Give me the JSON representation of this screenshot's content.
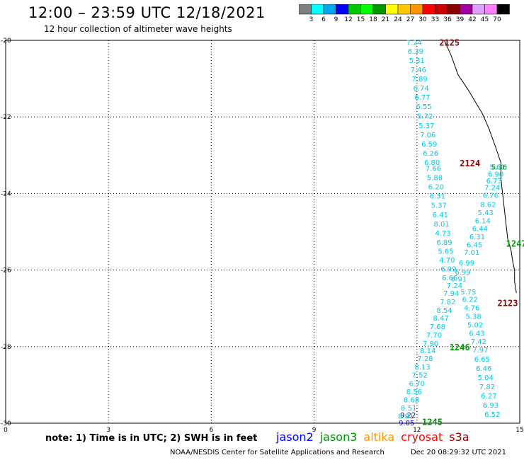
{
  "header": {
    "title": "12:00 – 23:59 UTC 12/18/2021",
    "subtitle": "12 hour collection of altimeter wave heights"
  },
  "colorbar": {
    "colors": [
      "#808080",
      "#00ffff",
      "#00a8f0",
      "#0000ff",
      "#00c800",
      "#00ff00",
      "#009600",
      "#ffff00",
      "#ffc800",
      "#ff9600",
      "#ff0000",
      "#c80000",
      "#8c0000",
      "#a000a0",
      "#e0a0ff",
      "#ff80ff",
      "#000000"
    ],
    "labels": [
      "3",
      "6",
      "9",
      "12",
      "15",
      "18",
      "21",
      "24",
      "27",
      "30",
      "33",
      "36",
      "39",
      "42",
      "45",
      "70"
    ],
    "unit": "(ft)"
  },
  "note": "note:  1) Time is in UTC;  2) SWH is in feet",
  "legend": [
    {
      "label": "jason2",
      "color": "#0000ff"
    },
    {
      "label": "jason3",
      "color": "#009600"
    },
    {
      "label": "altika",
      "color": "#ff9600"
    },
    {
      "label": "cryosat",
      "color": "#ff0000"
    },
    {
      "label": "s3a",
      "color": "#8c0000"
    }
  ],
  "footer": "NOAA/NESDIS Center for Satellite Applications and Research",
  "timestamp": "Dec 20 08:29:32 UTC 2021",
  "chart_data": {
    "type": "scatter",
    "xlim": [
      0,
      15
    ],
    "ylim": [
      -30,
      -20
    ],
    "x_ticks": [
      0,
      3,
      6,
      9,
      12,
      15
    ],
    "y_ticks": [
      -20,
      -22,
      -24,
      -26,
      -28,
      -30
    ],
    "y_tick_labels": [
      "-20",
      "-22",
      "-24",
      "-26",
      "-28",
      "-30"
    ],
    "grid": true,
    "coastline": [
      [
        12.8,
        -20.0
      ],
      [
        13.0,
        -20.4
      ],
      [
        13.2,
        -20.9
      ],
      [
        13.5,
        -21.3
      ],
      [
        13.7,
        -21.6
      ],
      [
        13.9,
        -21.9
      ],
      [
        14.1,
        -22.3
      ],
      [
        14.3,
        -22.8
      ],
      [
        14.45,
        -23.2
      ],
      [
        14.45,
        -23.6
      ],
      [
        14.5,
        -24.0
      ],
      [
        14.55,
        -24.4
      ],
      [
        14.6,
        -24.8
      ],
      [
        14.65,
        -25.2
      ],
      [
        14.75,
        -25.5
      ],
      [
        14.8,
        -25.8
      ],
      [
        14.85,
        -26.0
      ],
      [
        14.85,
        -26.3
      ],
      [
        14.9,
        -26.6
      ]
    ],
    "pass_labels": [
      {
        "text": "2125",
        "lon": 12.65,
        "lat": -20.05,
        "color": "#8c0000"
      },
      {
        "text": "2124",
        "lon": 13.25,
        "lat": -23.2,
        "color": "#8c0000"
      },
      {
        "text": "1247",
        "lon": 14.6,
        "lat": -25.3,
        "color": "#009600"
      },
      {
        "text": "2123",
        "lon": 14.35,
        "lat": -26.85,
        "color": "#8c0000"
      },
      {
        "text": "1246",
        "lon": 12.95,
        "lat": -28.0,
        "color": "#009600"
      },
      {
        "text": "1245",
        "lon": 12.15,
        "lat": -29.95,
        "color": "#009600"
      }
    ],
    "series": [
      {
        "name": "2125",
        "color": "#00c8e8",
        "points": [
          {
            "lon": 11.92,
            "lat": -20.05,
            "v": "7.24"
          },
          {
            "lon": 11.96,
            "lat": -20.28,
            "v": "6.39"
          },
          {
            "lon": 12.0,
            "lat": -20.52,
            "v": "5.31"
          },
          {
            "lon": 12.04,
            "lat": -20.76,
            "v": "7.46"
          },
          {
            "lon": 12.08,
            "lat": -21.0,
            "v": "7.89"
          },
          {
            "lon": 12.12,
            "lat": -21.24,
            "v": "6.74"
          },
          {
            "lon": 12.16,
            "lat": -21.48,
            "v": "6.77"
          },
          {
            "lon": 12.2,
            "lat": -21.72,
            "v": "6.55"
          },
          {
            "lon": 12.24,
            "lat": -21.97,
            "v": "5.72"
          },
          {
            "lon": 12.28,
            "lat": -22.22,
            "v": "5.37"
          },
          {
            "lon": 12.32,
            "lat": -22.46,
            "v": "7.06"
          },
          {
            "lon": 12.36,
            "lat": -22.7,
            "v": "6.59"
          },
          {
            "lon": 12.4,
            "lat": -22.94,
            "v": "6.26"
          },
          {
            "lon": 12.44,
            "lat": -23.18,
            "v": "6.80"
          },
          {
            "lon": 12.48,
            "lat": -23.34,
            "v": "7.66"
          },
          {
            "lon": 12.52,
            "lat": -23.58,
            "v": "5.88"
          },
          {
            "lon": 12.56,
            "lat": -23.82,
            "v": "6.20"
          },
          {
            "lon": 12.6,
            "lat": -24.06,
            "v": "6.31"
          },
          {
            "lon": 12.64,
            "lat": -24.3,
            "v": "5.37"
          },
          {
            "lon": 12.68,
            "lat": -24.55,
            "v": "6.41"
          },
          {
            "lon": 12.72,
            "lat": -24.79,
            "v": "8.01"
          },
          {
            "lon": 12.76,
            "lat": -25.03,
            "v": "4.73"
          },
          {
            "lon": 12.8,
            "lat": -25.27,
            "v": "6.89"
          },
          {
            "lon": 12.84,
            "lat": -25.5,
            "v": "5.65"
          },
          {
            "lon": 12.88,
            "lat": -25.73,
            "v": "4.70"
          },
          {
            "lon": 12.92,
            "lat": -25.96,
            "v": "6.99"
          },
          {
            "lon": 12.96,
            "lat": -26.19,
            "v": "6.66"
          }
        ]
      },
      {
        "name": "2124",
        "color": "#00c8e8",
        "points": [
          {
            "lon": 14.35,
            "lat": -23.3,
            "v": "5.61"
          },
          {
            "lon": 14.3,
            "lat": -23.48,
            "v": "6.90"
          },
          {
            "lon": 14.25,
            "lat": -23.66,
            "v": "6.73"
          },
          {
            "lon": 14.2,
            "lat": -23.84,
            "v": "7.24"
          },
          {
            "lon": 14.15,
            "lat": -24.04,
            "v": "6.76"
          },
          {
            "lon": 14.08,
            "lat": -24.28,
            "v": "8.62"
          },
          {
            "lon": 14.0,
            "lat": -24.49,
            "v": "5.43"
          },
          {
            "lon": 13.92,
            "lat": -24.7,
            "v": "6.14"
          },
          {
            "lon": 13.84,
            "lat": -24.91,
            "v": "6.44"
          },
          {
            "lon": 13.76,
            "lat": -25.12,
            "v": "6.31"
          },
          {
            "lon": 13.68,
            "lat": -25.33,
            "v": "6.45"
          },
          {
            "lon": 13.6,
            "lat": -25.53,
            "v": "7.01"
          },
          {
            "lon": 13.45,
            "lat": -25.8,
            "v": "6.99"
          },
          {
            "lon": 13.34,
            "lat": -26.04,
            "v": "6.99"
          },
          {
            "lon": 13.22,
            "lat": -26.22,
            "v": "6.91"
          },
          {
            "lon": 13.1,
            "lat": -26.4,
            "v": "7.24"
          },
          {
            "lon": 13.0,
            "lat": -26.6,
            "v": "7.94"
          },
          {
            "lon": 12.9,
            "lat": -26.82,
            "v": "7.82"
          },
          {
            "lon": 12.8,
            "lat": -27.04,
            "v": "8.54"
          },
          {
            "lon": 12.7,
            "lat": -27.25,
            "v": "8.47"
          },
          {
            "lon": 12.6,
            "lat": -27.47,
            "v": "7.68"
          },
          {
            "lon": 12.5,
            "lat": -27.69,
            "v": "7.70"
          },
          {
            "lon": 12.4,
            "lat": -27.91,
            "v": "7.90"
          },
          {
            "lon": 12.32,
            "lat": -28.1,
            "v": "8.14"
          },
          {
            "lon": 12.24,
            "lat": -28.3,
            "v": "7.28"
          },
          {
            "lon": 12.16,
            "lat": -28.52,
            "v": "8.13"
          },
          {
            "lon": 12.08,
            "lat": -28.73,
            "v": "7.52"
          },
          {
            "lon": 12.0,
            "lat": -28.96,
            "v": "6.70"
          },
          {
            "lon": 11.92,
            "lat": -29.17,
            "v": "8.56"
          },
          {
            "lon": 11.84,
            "lat": -29.38,
            "v": "8.68"
          },
          {
            "lon": 11.76,
            "lat": -29.59,
            "v": "8.51"
          }
        ]
      },
      {
        "name": "2123",
        "color": "#00c8e8",
        "points": [
          {
            "lon": 13.5,
            "lat": -26.56,
            "v": "5.75"
          },
          {
            "lon": 13.55,
            "lat": -26.76,
            "v": "6.22"
          },
          {
            "lon": 13.6,
            "lat": -26.98,
            "v": "4.76"
          },
          {
            "lon": 13.65,
            "lat": -27.2,
            "v": "5.38"
          },
          {
            "lon": 13.7,
            "lat": -27.42,
            "v": "5.02"
          },
          {
            "lon": 13.75,
            "lat": -27.64,
            "v": "6.43"
          },
          {
            "lon": 13.8,
            "lat": -27.86,
            "v": "7.42"
          },
          {
            "lon": 13.85,
            "lat": -28.08,
            "v": "7.97"
          },
          {
            "lon": 13.9,
            "lat": -28.32,
            "v": "6.65"
          },
          {
            "lon": 13.95,
            "lat": -28.56,
            "v": "6.46"
          },
          {
            "lon": 14.0,
            "lat": -28.8,
            "v": "5.04"
          },
          {
            "lon": 14.05,
            "lat": -29.04,
            "v": "7.82"
          },
          {
            "lon": 14.1,
            "lat": -29.28,
            "v": "6.27"
          },
          {
            "lon": 14.15,
            "lat": -29.52,
            "v": "6.93"
          },
          {
            "lon": 14.2,
            "lat": -29.76,
            "v": "6.52"
          }
        ]
      },
      {
        "name": "1247",
        "color": "#009600",
        "points": [
          {
            "lon": 14.4,
            "lat": -23.3,
            "v": "5.36"
          }
        ]
      },
      {
        "name": "1245",
        "color": "#0000c8",
        "points": [
          {
            "lon": 11.74,
            "lat": -29.78,
            "v": "9.22"
          },
          {
            "lon": 11.7,
            "lat": -29.98,
            "v": "9.05"
          }
        ]
      },
      {
        "name": "1245b",
        "color": "#00c8e8",
        "points": [
          {
            "lon": 11.68,
            "lat": -29.81,
            "v": "8.91"
          }
        ]
      }
    ]
  }
}
